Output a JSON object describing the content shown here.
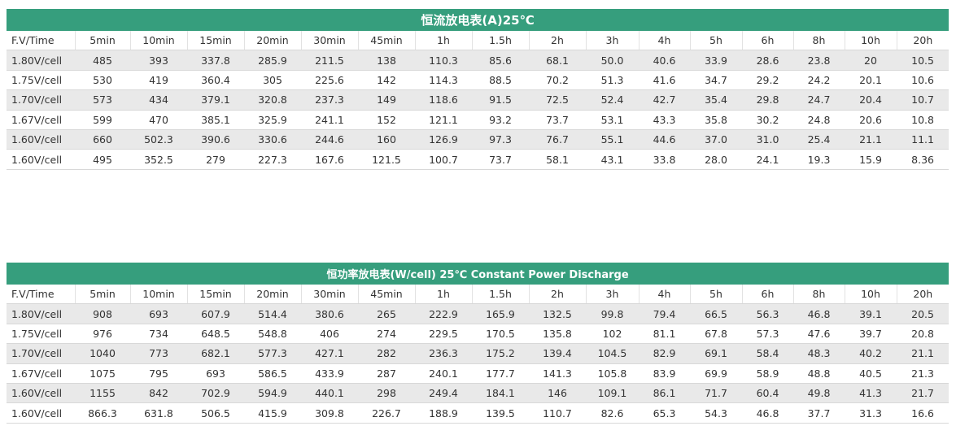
{
  "tables": [
    {
      "title": "恒流放电表(A)25℃",
      "header": [
        "F.V/Time",
        "5min",
        "10min",
        "15min",
        "20min",
        "30min",
        "45min",
        "1h",
        "1.5h",
        "2h",
        "3h",
        "4h",
        "5h",
        "6h",
        "8h",
        "10h",
        "20h"
      ],
      "rows": [
        [
          "1.80V/cell",
          "485",
          "393",
          "337.8",
          "285.9",
          "211.5",
          "138",
          "110.3",
          "85.6",
          "68.1",
          "50.0",
          "40.6",
          "33.9",
          "28.6",
          "23.8",
          "20",
          "10.5"
        ],
        [
          "1.75V/cell",
          "530",
          "419",
          "360.4",
          "305",
          "225.6",
          "142",
          "114.3",
          "88.5",
          "70.2",
          "51.3",
          "41.6",
          "34.7",
          "29.2",
          "24.2",
          "20.1",
          "10.6"
        ],
        [
          "1.70V/cell",
          "573",
          "434",
          "379.1",
          "320.8",
          "237.3",
          "149",
          "118.6",
          "91.5",
          "72.5",
          "52.4",
          "42.7",
          "35.4",
          "29.8",
          "24.7",
          "20.4",
          "10.7"
        ],
        [
          "1.67V/cell",
          "599",
          "470",
          "385.1",
          "325.9",
          "241.1",
          "152",
          "121.1",
          "93.2",
          "73.7",
          "53.1",
          "43.3",
          "35.8",
          "30.2",
          "24.8",
          "20.6",
          "10.8"
        ],
        [
          "1.60V/cell",
          "660",
          "502.3",
          "390.6",
          "330.6",
          "244.6",
          "160",
          "126.9",
          "97.3",
          "76.7",
          "55.1",
          "44.6",
          "37.0",
          "31.0",
          "25.4",
          "21.1",
          "11.1"
        ],
        [
          "1.60V/cell",
          "495",
          "352.5",
          "279",
          "227.3",
          "167.6",
          "121.5",
          "100.7",
          "73.7",
          "58.1",
          "43.1",
          "33.8",
          "28.0",
          "24.1",
          "19.3",
          "15.9",
          "8.36"
        ]
      ]
    },
    {
      "title": "恒功率放电表(W/cell) 25℃ Constant Power Discharge",
      "header": [
        "F.V/Time",
        "5min",
        "10min",
        "15min",
        "20min",
        "30min",
        "45min",
        "1h",
        "1.5h",
        "2h",
        "3h",
        "4h",
        "5h",
        "6h",
        "8h",
        "10h",
        "20h"
      ],
      "rows": [
        [
          "1.80V/cell",
          "908",
          "693",
          "607.9",
          "514.4",
          "380.6",
          "265",
          "222.9",
          "165.9",
          "132.5",
          "99.8",
          "79.4",
          "66.5",
          "56.3",
          "46.8",
          "39.1",
          "20.5"
        ],
        [
          "1.75V/cell",
          "976",
          "734",
          "648.5",
          "548.8",
          "406",
          "274",
          "229.5",
          "170.5",
          "135.8",
          "102",
          "81.1",
          "67.8",
          "57.3",
          "47.6",
          "39.7",
          "20.8"
        ],
        [
          "1.70V/cell",
          "1040",
          "773",
          "682.1",
          "577.3",
          "427.1",
          "282",
          "236.3",
          "175.2",
          "139.4",
          "104.5",
          "82.9",
          "69.1",
          "58.4",
          "48.3",
          "40.2",
          "21.1"
        ],
        [
          "1.67V/cell",
          "1075",
          "795",
          "693",
          "586.5",
          "433.9",
          "287",
          "240.1",
          "177.7",
          "141.3",
          "105.8",
          "83.9",
          "69.9",
          "58.9",
          "48.8",
          "40.5",
          "21.3"
        ],
        [
          "1.60V/cell",
          "1155",
          "842",
          "702.9",
          "594.9",
          "440.1",
          "298",
          "249.4",
          "184.1",
          "146",
          "109.1",
          "86.1",
          "71.7",
          "60.4",
          "49.8",
          "41.3",
          "21.7"
        ],
        [
          "1.60V/cell",
          "866.3",
          "631.8",
          "506.5",
          "415.9",
          "309.8",
          "226.7",
          "188.9",
          "139.5",
          "110.7",
          "82.6",
          "65.3",
          "54.3",
          "46.8",
          "37.7",
          "31.3",
          "16.6"
        ]
      ]
    }
  ]
}
